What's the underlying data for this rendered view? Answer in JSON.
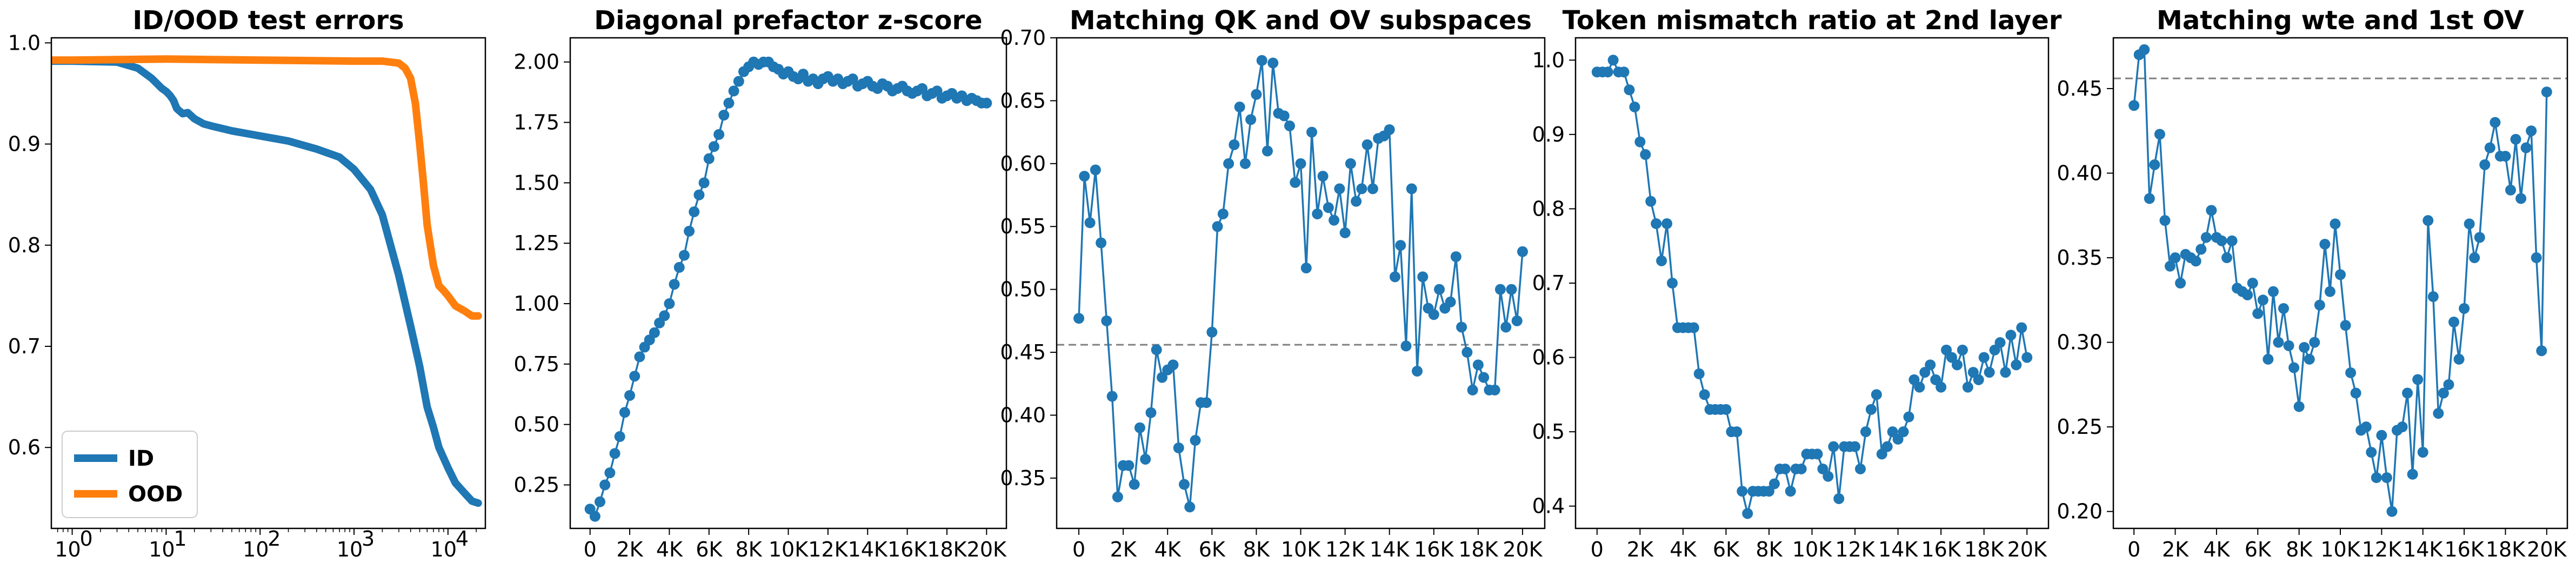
{
  "colors": {
    "blue": "#1f77b4",
    "orange": "#ff7f0e",
    "reference": "#7f7f7f"
  },
  "chart_data": [
    {
      "type": "line",
      "title": "ID/OOD test errors",
      "xscale": "log",
      "xlim": [
        0.6,
        25000
      ],
      "ylim": [
        0.52,
        1.005
      ],
      "xticks": [
        1,
        10,
        100,
        1000,
        10000
      ],
      "xtick_labels": [
        "10",
        "10",
        "10",
        "10",
        "10"
      ],
      "xtick_exponents": [
        "0",
        "1",
        "2",
        "3",
        "4"
      ],
      "yticks": [
        0.6,
        0.7,
        0.8,
        0.9,
        1.0
      ],
      "ytick_labels": [
        "0.6",
        "0.7",
        "0.8",
        "0.9",
        "1.0"
      ],
      "legend": "lower left",
      "series": [
        {
          "name": "ID",
          "color": "#1f77b4",
          "x": [
            0.6,
            1,
            3,
            5,
            7,
            9,
            10,
            11,
            12,
            13,
            15,
            17,
            20,
            25,
            30,
            50,
            100,
            200,
            400,
            700,
            1000,
            1500,
            2000,
            3000,
            4000,
            5000,
            6000,
            7000,
            8000,
            10000,
            12000,
            15000,
            18000,
            21000
          ],
          "y": [
            0.982,
            0.982,
            0.981,
            0.975,
            0.965,
            0.955,
            0.952,
            0.948,
            0.943,
            0.935,
            0.93,
            0.931,
            0.925,
            0.92,
            0.918,
            0.913,
            0.908,
            0.903,
            0.895,
            0.887,
            0.875,
            0.855,
            0.83,
            0.77,
            0.72,
            0.68,
            0.64,
            0.62,
            0.6,
            0.58,
            0.565,
            0.555,
            0.547,
            0.545
          ]
        },
        {
          "name": "OOD",
          "color": "#ff7f0e",
          "x": [
            0.6,
            1,
            10,
            100,
            1000,
            2000,
            3000,
            3500,
            4000,
            4500,
            5000,
            5500,
            6000,
            7000,
            8000,
            9000,
            10000,
            12000,
            15000,
            18000,
            21000
          ],
          "y": [
            0.983,
            0.983,
            0.984,
            0.983,
            0.982,
            0.982,
            0.98,
            0.975,
            0.965,
            0.94,
            0.9,
            0.86,
            0.82,
            0.78,
            0.76,
            0.755,
            0.75,
            0.74,
            0.735,
            0.73,
            0.73
          ]
        }
      ]
    },
    {
      "type": "line",
      "title": "Diagonal prefactor z-score",
      "xlim": [
        -1000,
        21000
      ],
      "ylim": [
        0.07,
        2.1
      ],
      "xticks": [
        0,
        2000,
        4000,
        6000,
        8000,
        10000,
        12000,
        14000,
        16000,
        18000,
        20000
      ],
      "xtick_labels": [
        "0",
        "2K",
        "4K",
        "6K",
        "8K",
        "10K",
        "12K",
        "14K",
        "16K",
        "18K",
        "20K"
      ],
      "yticks": [
        0.25,
        0.5,
        0.75,
        1.0,
        1.25,
        1.5,
        1.75,
        2.0
      ],
      "ytick_labels": [
        "0.25",
        "0.50",
        "0.75",
        "1.00",
        "1.25",
        "1.50",
        "1.75",
        "2.00"
      ],
      "series": [
        {
          "color": "#1f77b4",
          "x": [
            0,
            250,
            500,
            750,
            1000,
            1250,
            1500,
            1750,
            2000,
            2250,
            2500,
            2750,
            3000,
            3250,
            3500,
            3750,
            4000,
            4250,
            4500,
            4750,
            5000,
            5250,
            5500,
            5750,
            6000,
            6250,
            6500,
            6750,
            7000,
            7250,
            7500,
            7750,
            8000,
            8250,
            8500,
            8750,
            9000,
            9250,
            9500,
            9750,
            10000,
            10250,
            10500,
            10750,
            11000,
            11250,
            11500,
            11750,
            12000,
            12250,
            12500,
            12750,
            13000,
            13250,
            13500,
            13750,
            14000,
            14250,
            14500,
            14750,
            15000,
            15250,
            15500,
            15750,
            16000,
            16250,
            16500,
            16750,
            17000,
            17250,
            17500,
            17750,
            18000,
            18250,
            18500,
            18750,
            19000,
            19250,
            19500,
            19750,
            20000
          ],
          "y": [
            0.15,
            0.12,
            0.18,
            0.25,
            0.3,
            0.38,
            0.45,
            0.55,
            0.62,
            0.7,
            0.78,
            0.82,
            0.85,
            0.88,
            0.92,
            0.95,
            1.0,
            1.08,
            1.15,
            1.2,
            1.3,
            1.38,
            1.45,
            1.5,
            1.6,
            1.65,
            1.7,
            1.78,
            1.83,
            1.88,
            1.92,
            1.96,
            1.98,
            2.0,
            1.99,
            2.0,
            2.0,
            1.98,
            1.97,
            1.95,
            1.96,
            1.94,
            1.93,
            1.95,
            1.92,
            1.93,
            1.91,
            1.93,
            1.94,
            1.92,
            1.93,
            1.91,
            1.92,
            1.93,
            1.9,
            1.91,
            1.92,
            1.9,
            1.89,
            1.91,
            1.9,
            1.88,
            1.89,
            1.9,
            1.88,
            1.87,
            1.88,
            1.89,
            1.86,
            1.87,
            1.88,
            1.85,
            1.86,
            1.87,
            1.85,
            1.86,
            1.84,
            1.85,
            1.84,
            1.83,
            1.83
          ]
        }
      ]
    },
    {
      "type": "line",
      "title": "Matching QK and OV subspaces",
      "xlim": [
        -1000,
        21000
      ],
      "ylim": [
        0.31,
        0.7
      ],
      "xticks": [
        0,
        2000,
        4000,
        6000,
        8000,
        10000,
        12000,
        14000,
        16000,
        18000,
        20000
      ],
      "xtick_labels": [
        "0",
        "2K",
        "4K",
        "6K",
        "8K",
        "10K",
        "12K",
        "14K",
        "16K",
        "18K",
        "20K"
      ],
      "yticks": [
        0.35,
        0.4,
        0.45,
        0.5,
        0.55,
        0.6,
        0.65,
        0.7
      ],
      "ytick_labels": [
        "0.35",
        "0.40",
        "0.45",
        "0.50",
        "0.55",
        "0.60",
        "0.65",
        "0.70"
      ],
      "reference_line": 0.456,
      "series": [
        {
          "color": "#1f77b4",
          "x": [
            0,
            250,
            500,
            750,
            1000,
            1250,
            1500,
            1750,
            2000,
            2250,
            2500,
            2750,
            3000,
            3250,
            3500,
            3750,
            4000,
            4250,
            4500,
            4750,
            5000,
            5250,
            5500,
            5750,
            6000,
            6250,
            6500,
            6750,
            7000,
            7250,
            7500,
            7750,
            8000,
            8250,
            8500,
            8750,
            9000,
            9250,
            9500,
            9750,
            10000,
            10250,
            10500,
            10750,
            11000,
            11250,
            11500,
            11750,
            12000,
            12250,
            12500,
            12750,
            13000,
            13250,
            13500,
            13750,
            14000,
            14250,
            14500,
            14750,
            15000,
            15250,
            15500,
            15750,
            16000,
            16250,
            16500,
            16750,
            17000,
            17250,
            17500,
            17750,
            18000,
            18250,
            18500,
            18750,
            19000,
            19250,
            19500,
            19750,
            20000
          ],
          "y": [
            0.477,
            0.59,
            0.553,
            0.595,
            0.537,
            0.475,
            0.415,
            0.335,
            0.36,
            0.36,
            0.345,
            0.39,
            0.365,
            0.402,
            0.452,
            0.43,
            0.436,
            0.44,
            0.374,
            0.345,
            0.327,
            0.38,
            0.41,
            0.41,
            0.466,
            0.55,
            0.56,
            0.6,
            0.615,
            0.645,
            0.6,
            0.635,
            0.655,
            0.682,
            0.61,
            0.68,
            0.64,
            0.638,
            0.63,
            0.585,
            0.6,
            0.517,
            0.625,
            0.56,
            0.59,
            0.565,
            0.555,
            0.58,
            0.545,
            0.6,
            0.57,
            0.58,
            0.615,
            0.58,
            0.62,
            0.622,
            0.627,
            0.51,
            0.535,
            0.455,
            0.58,
            0.435,
            0.51,
            0.485,
            0.48,
            0.5,
            0.485,
            0.49,
            0.526,
            0.47,
            0.45,
            0.42,
            0.44,
            0.43,
            0.42,
            0.42,
            0.5,
            0.47,
            0.5,
            0.475,
            0.53
          ]
        }
      ]
    },
    {
      "type": "line",
      "title": "Token mismatch ratio at 2nd layer",
      "xlim": [
        -1000,
        21000
      ],
      "ylim": [
        0.37,
        1.03
      ],
      "xticks": [
        0,
        2000,
        4000,
        6000,
        8000,
        10000,
        12000,
        14000,
        16000,
        18000,
        20000
      ],
      "xtick_labels": [
        "0",
        "2K",
        "4K",
        "6K",
        "8K",
        "10K",
        "12K",
        "14K",
        "16K",
        "18K",
        "20K"
      ],
      "yticks": [
        0.4,
        0.5,
        0.6,
        0.7,
        0.8,
        0.9,
        1.0
      ],
      "ytick_labels": [
        "0.4",
        "0.5",
        "0.6",
        "0.7",
        "0.8",
        "0.9",
        "1.0"
      ],
      "series": [
        {
          "color": "#1f77b4",
          "x": [
            0,
            250,
            500,
            750,
            1000,
            1250,
            1500,
            1750,
            2000,
            2250,
            2500,
            2750,
            3000,
            3250,
            3500,
            3750,
            4000,
            4250,
            4500,
            4750,
            5000,
            5250,
            5500,
            5750,
            6000,
            6250,
            6500,
            6750,
            7000,
            7250,
            7500,
            7750,
            8000,
            8250,
            8500,
            8750,
            9000,
            9250,
            9500,
            9750,
            10000,
            10250,
            10500,
            10750,
            11000,
            11250,
            11500,
            11750,
            12000,
            12250,
            12500,
            12750,
            13000,
            13250,
            13500,
            13750,
            14000,
            14250,
            14500,
            14750,
            15000,
            15250,
            15500,
            15750,
            16000,
            16250,
            16500,
            16750,
            17000,
            17250,
            17500,
            17750,
            18000,
            18250,
            18500,
            18750,
            19000,
            19250,
            19500,
            19750,
            20000
          ],
          "y": [
            0.984,
            0.984,
            0.984,
            1.0,
            0.984,
            0.984,
            0.96,
            0.937,
            0.89,
            0.873,
            0.81,
            0.78,
            0.73,
            0.78,
            0.7,
            0.64,
            0.64,
            0.64,
            0.64,
            0.578,
            0.55,
            0.53,
            0.53,
            0.53,
            0.53,
            0.5,
            0.5,
            0.42,
            0.39,
            0.42,
            0.42,
            0.42,
            0.42,
            0.43,
            0.45,
            0.45,
            0.42,
            0.45,
            0.45,
            0.47,
            0.47,
            0.47,
            0.45,
            0.44,
            0.48,
            0.41,
            0.48,
            0.48,
            0.48,
            0.45,
            0.5,
            0.53,
            0.55,
            0.47,
            0.48,
            0.5,
            0.49,
            0.5,
            0.52,
            0.57,
            0.56,
            0.58,
            0.59,
            0.57,
            0.56,
            0.61,
            0.6,
            0.59,
            0.61,
            0.56,
            0.58,
            0.57,
            0.6,
            0.58,
            0.61,
            0.62,
            0.58,
            0.63,
            0.59,
            0.64,
            0.6
          ]
        }
      ]
    },
    {
      "type": "line",
      "title": "Matching wte and 1st OV",
      "xlim": [
        -1000,
        21000
      ],
      "ylim": [
        0.19,
        0.48
      ],
      "xticks": [
        0,
        2000,
        4000,
        6000,
        8000,
        10000,
        12000,
        14000,
        16000,
        18000,
        20000
      ],
      "xtick_labels": [
        "0",
        "2K",
        "4K",
        "6K",
        "8K",
        "10K",
        "12K",
        "14K",
        "16K",
        "18K",
        "20K"
      ],
      "yticks": [
        0.2,
        0.25,
        0.3,
        0.35,
        0.4,
        0.45
      ],
      "ytick_labels": [
        "0.20",
        "0.25",
        "0.30",
        "0.35",
        "0.40",
        "0.45"
      ],
      "reference_line": 0.456,
      "series": [
        {
          "color": "#1f77b4",
          "x": [
            0,
            250,
            500,
            750,
            1000,
            1250,
            1500,
            1750,
            2000,
            2250,
            2500,
            2750,
            3000,
            3250,
            3500,
            3750,
            4000,
            4250,
            4500,
            4750,
            5000,
            5250,
            5500,
            5750,
            6000,
            6250,
            6500,
            6750,
            7000,
            7250,
            7500,
            7750,
            8000,
            8250,
            8500,
            8750,
            9000,
            9250,
            9500,
            9750,
            10000,
            10250,
            10500,
            10750,
            11000,
            11250,
            11500,
            11750,
            12000,
            12250,
            12500,
            12750,
            13000,
            13250,
            13500,
            13750,
            14000,
            14250,
            14500,
            14750,
            15000,
            15250,
            15500,
            15750,
            16000,
            16250,
            16500,
            16750,
            17000,
            17250,
            17500,
            17750,
            18000,
            18250,
            18500,
            18750,
            19000,
            19250,
            19500,
            19750,
            20000
          ],
          "y": [
            0.44,
            0.47,
            0.473,
            0.385,
            0.405,
            0.423,
            0.372,
            0.345,
            0.35,
            0.335,
            0.352,
            0.35,
            0.348,
            0.355,
            0.362,
            0.378,
            0.362,
            0.36,
            0.35,
            0.36,
            0.332,
            0.33,
            0.328,
            0.335,
            0.317,
            0.325,
            0.29,
            0.33,
            0.3,
            0.32,
            0.298,
            0.285,
            0.262,
            0.297,
            0.29,
            0.3,
            0.322,
            0.358,
            0.33,
            0.37,
            0.34,
            0.31,
            0.282,
            0.27,
            0.248,
            0.25,
            0.235,
            0.22,
            0.245,
            0.22,
            0.2,
            0.248,
            0.25,
            0.27,
            0.222,
            0.278,
            0.235,
            0.372,
            0.327,
            0.258,
            0.27,
            0.275,
            0.312,
            0.29,
            0.32,
            0.37,
            0.35,
            0.362,
            0.405,
            0.415,
            0.43,
            0.41,
            0.41,
            0.39,
            0.42,
            0.385,
            0.415,
            0.425,
            0.35,
            0.295,
            0.448
          ]
        }
      ]
    }
  ]
}
